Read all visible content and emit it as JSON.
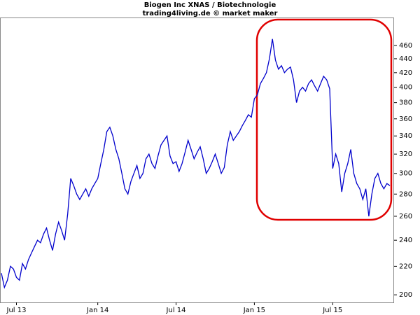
{
  "chart_data": {
    "type": "line",
    "title": "Biogen Inc XNAS / Biotechnologie",
    "subtitle": "trading4living.de © market maker",
    "log_scale": true,
    "color": "#0000cc",
    "ylim": [
      195,
      505
    ],
    "yticks": [
      200,
      220,
      240,
      260,
      280,
      300,
      320,
      340,
      360,
      380,
      400,
      420,
      440,
      460
    ],
    "categories": [
      null,
      null,
      null,
      null,
      null,
      "Jul 13",
      null,
      null,
      null,
      null,
      null,
      null,
      null,
      null,
      null,
      null,
      null,
      null,
      null,
      null,
      null,
      null,
      null,
      null,
      null,
      null,
      null,
      null,
      null,
      null,
      null,
      null,
      "Jan 14",
      null,
      null,
      null,
      null,
      null,
      null,
      null,
      null,
      null,
      null,
      null,
      null,
      null,
      null,
      null,
      null,
      null,
      null,
      null,
      null,
      null,
      null,
      null,
      null,
      null,
      "Jul 14",
      null,
      null,
      null,
      null,
      null,
      null,
      null,
      null,
      null,
      null,
      null,
      null,
      null,
      null,
      null,
      null,
      null,
      null,
      null,
      null,
      null,
      null,
      null,
      null,
      null,
      "Jan 15",
      null,
      null,
      null,
      null,
      null,
      null,
      null,
      null,
      null,
      null,
      null,
      null,
      null,
      null,
      null,
      null,
      null,
      null,
      null,
      null,
      null,
      null,
      null,
      null,
      null,
      "Jul 15",
      null,
      null,
      null,
      null,
      null,
      null,
      null,
      null,
      null,
      null,
      null,
      null,
      null,
      null,
      null,
      null,
      null,
      null,
      null
    ],
    "values": [
      215,
      205,
      210,
      220,
      218,
      212,
      210,
      222,
      218,
      225,
      230,
      235,
      240,
      238,
      245,
      250,
      240,
      232,
      245,
      255,
      248,
      240,
      262,
      295,
      288,
      280,
      275,
      280,
      285,
      278,
      285,
      290,
      295,
      310,
      325,
      345,
      350,
      340,
      325,
      315,
      300,
      285,
      280,
      292,
      300,
      308,
      295,
      300,
      315,
      320,
      310,
      305,
      318,
      330,
      335,
      340,
      318,
      310,
      312,
      302,
      310,
      322,
      335,
      325,
      315,
      322,
      328,
      315,
      300,
      305,
      312,
      320,
      310,
      300,
      306,
      330,
      345,
      335,
      340,
      345,
      352,
      358,
      365,
      362,
      385,
      390,
      405,
      412,
      420,
      440,
      470,
      438,
      425,
      430,
      420,
      425,
      428,
      410,
      380,
      395,
      400,
      395,
      405,
      410,
      402,
      395,
      405,
      415,
      410,
      398,
      305,
      320,
      310,
      282,
      300,
      310,
      325,
      300,
      290,
      285,
      275,
      285,
      260,
      280,
      295,
      300,
      290,
      285,
      290,
      288
    ]
  }
}
